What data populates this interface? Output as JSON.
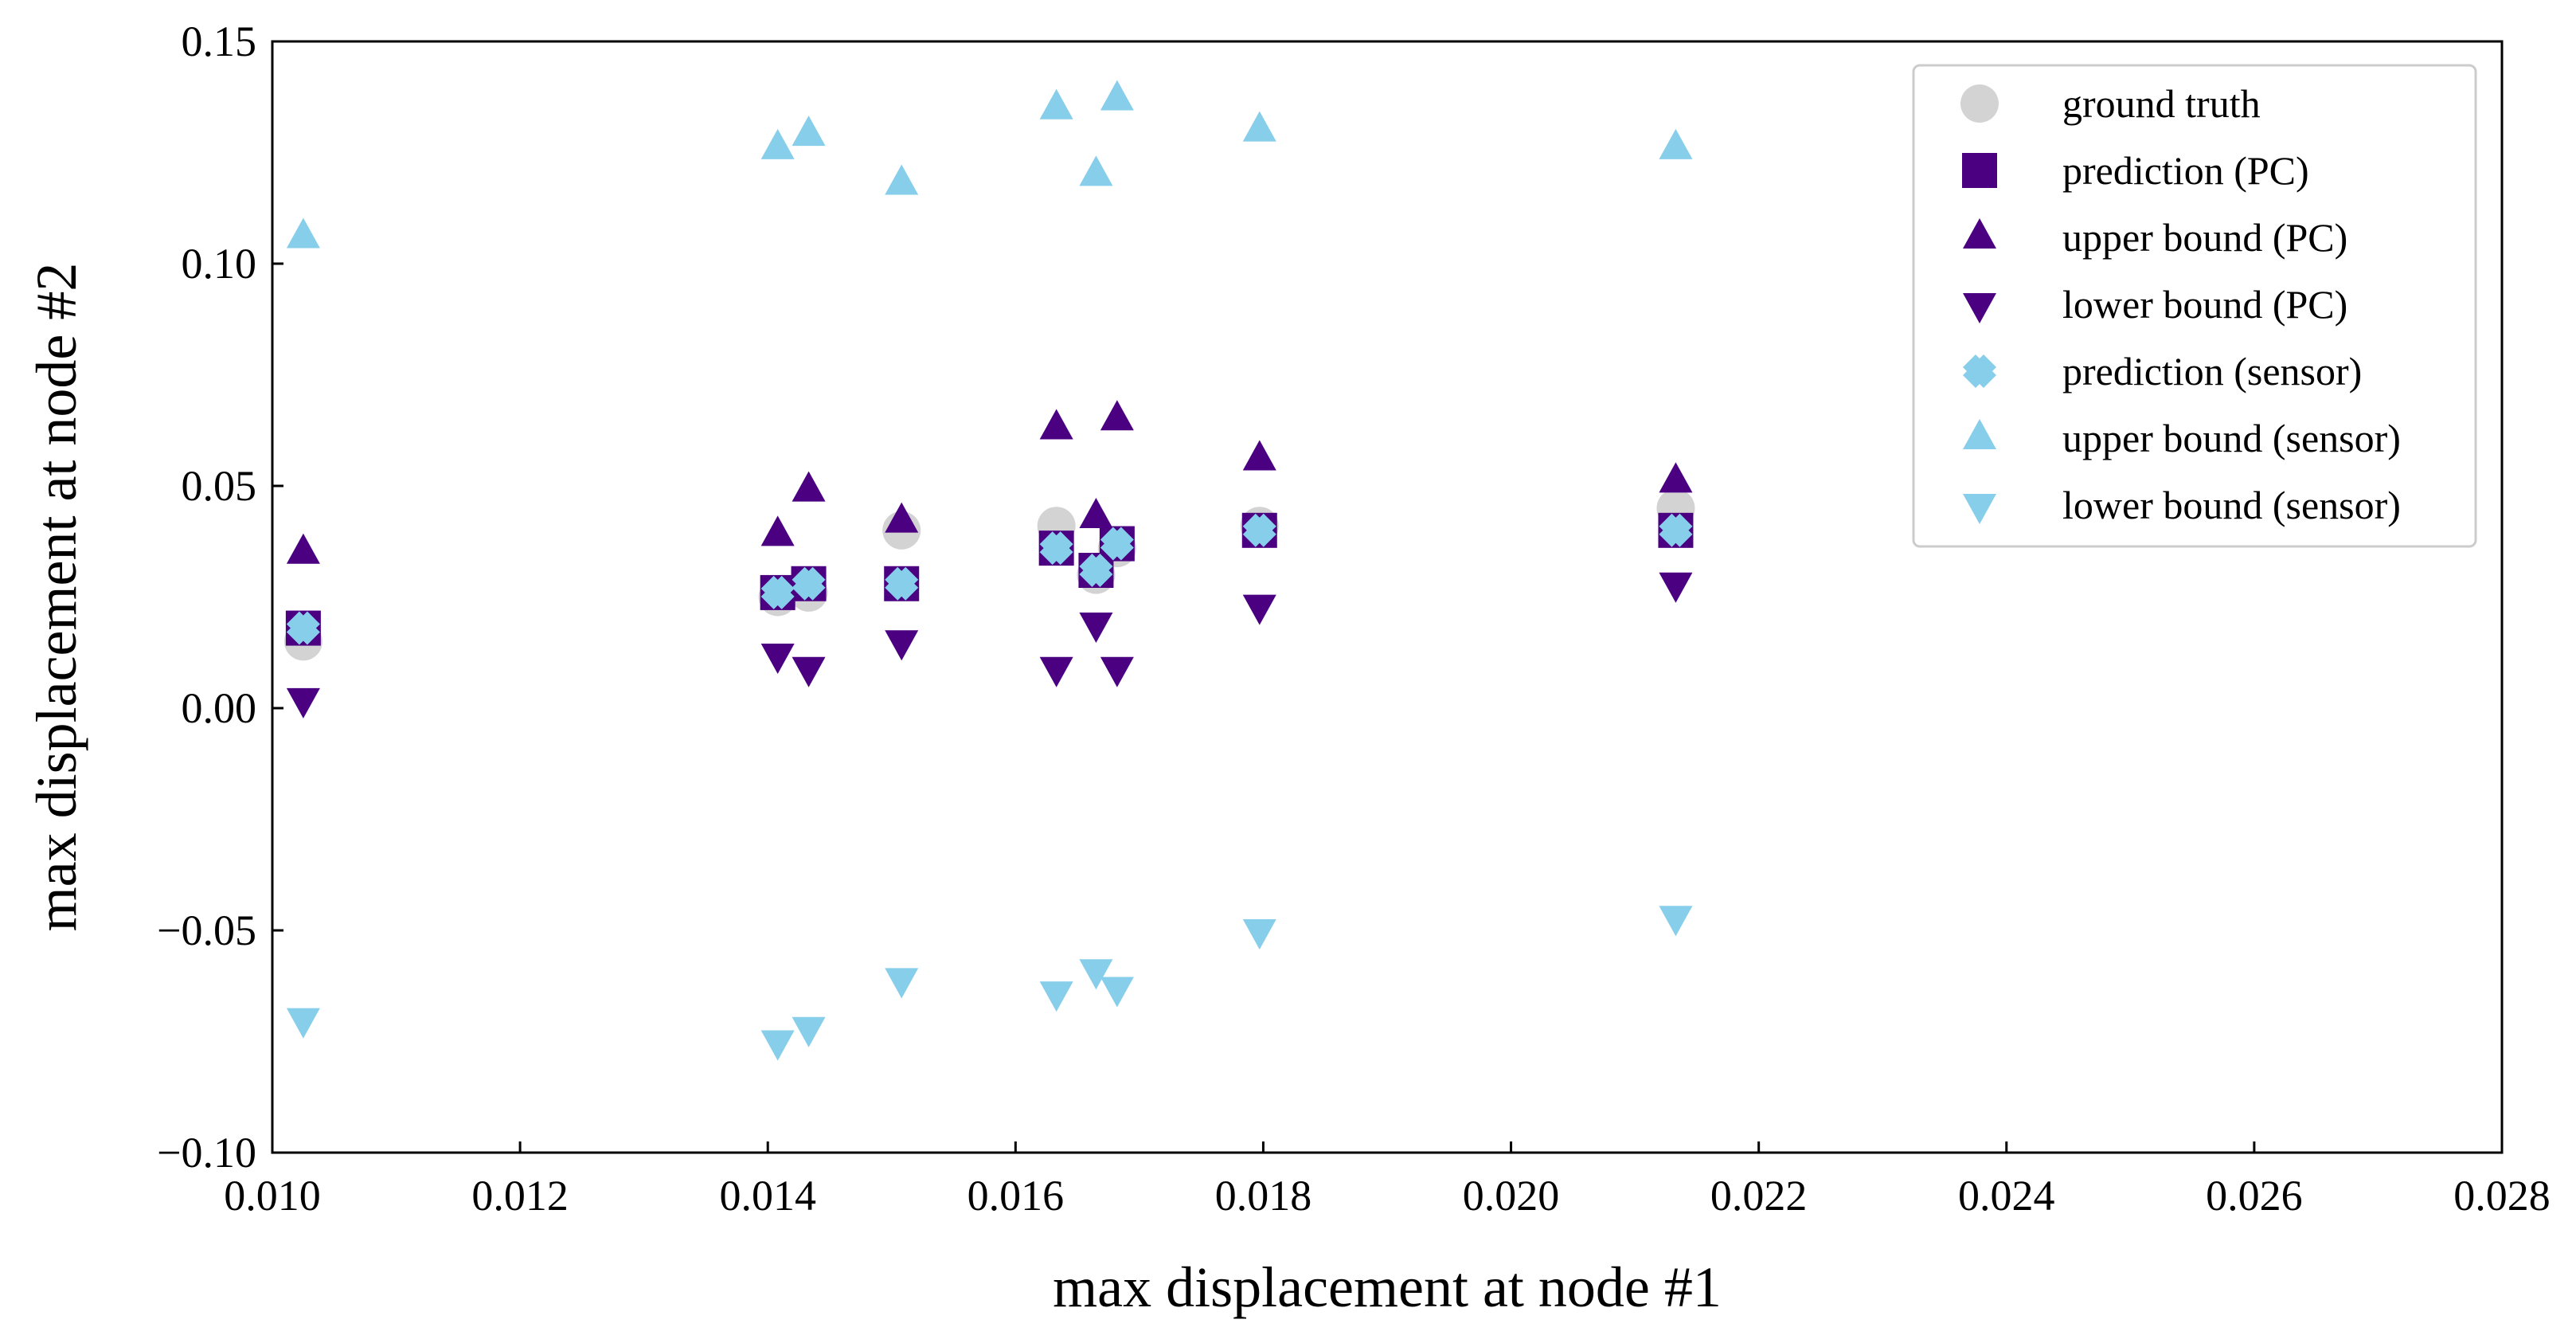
{
  "chart_data": {
    "type": "scatter",
    "title": "",
    "xlabel": "max displacement at node #1",
    "ylabel": "max displacement at node #2",
    "xlim": [
      0.01,
      0.028
    ],
    "ylim": [
      -0.1,
      0.15
    ],
    "xticks": [
      "0.010",
      "0.012",
      "0.014",
      "0.016",
      "0.018",
      "0.020",
      "0.022",
      "0.024",
      "0.026",
      "0.028"
    ],
    "yticks": [
      "−0.10",
      "−0.05",
      "0.00",
      "0.05",
      "0.10",
      "0.15"
    ],
    "grid": false,
    "legend_position": "top-right",
    "x": [
      0.01025,
      0.01408,
      0.01433,
      0.01508,
      0.01633,
      0.01665,
      0.01682,
      0.01797,
      0.02133
    ],
    "series": [
      {
        "name": "ground truth",
        "marker": "circle",
        "color": "#d3d3d3",
        "values": [
          0.015,
          0.025,
          0.026,
          0.04,
          0.041,
          0.03,
          0.036,
          0.041,
          0.045
        ]
      },
      {
        "name": "prediction (PC)",
        "marker": "square",
        "color": "#4b0082",
        "values": [
          0.018,
          0.026,
          0.028,
          0.028,
          0.036,
          0.031,
          0.037,
          0.04,
          0.04
        ]
      },
      {
        "name": "upper bound (PC)",
        "marker": "triangle-up",
        "color": "#4b0082",
        "values": [
          0.035,
          0.039,
          0.049,
          0.042,
          0.063,
          0.043,
          0.065,
          0.056,
          0.051
        ]
      },
      {
        "name": "lower bound (PC)",
        "marker": "triangle-down",
        "color": "#4b0082",
        "values": [
          0.002,
          0.012,
          0.009,
          0.015,
          0.009,
          0.019,
          0.009,
          0.023,
          0.028
        ]
      },
      {
        "name": "prediction (sensor)",
        "marker": "x",
        "color": "#87ceeb",
        "values": [
          0.018,
          0.026,
          0.028,
          0.028,
          0.036,
          0.031,
          0.037,
          0.04,
          0.04
        ]
      },
      {
        "name": "upper bound (sensor)",
        "marker": "triangle-up",
        "color": "#87ceeb",
        "values": [
          0.106,
          0.126,
          0.129,
          0.118,
          0.135,
          0.12,
          0.137,
          0.13,
          0.126
        ]
      },
      {
        "name": "lower bound (sensor)",
        "marker": "triangle-down",
        "color": "#87ceeb",
        "values": [
          -0.07,
          -0.075,
          -0.072,
          -0.061,
          -0.064,
          -0.059,
          -0.063,
          -0.05,
          -0.047
        ]
      }
    ]
  }
}
